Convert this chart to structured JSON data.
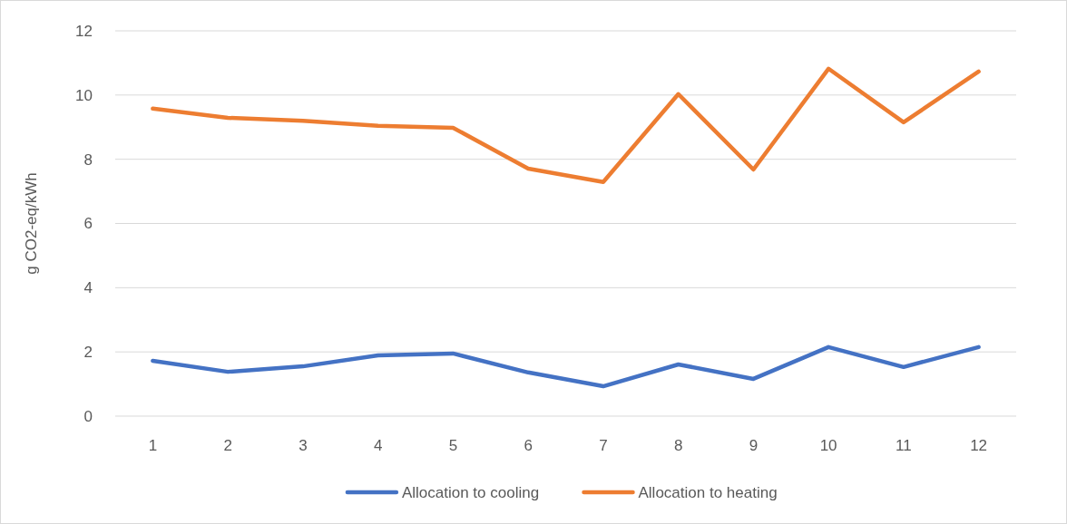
{
  "chart_data": {
    "type": "line",
    "ylabel": "g CO2-eq/kWh",
    "categories": [
      "1",
      "2",
      "3",
      "4",
      "5",
      "6",
      "7",
      "8",
      "9",
      "10",
      "11",
      "12"
    ],
    "series": [
      {
        "name": "Allocation to cooling",
        "color": "#4472c4",
        "values": [
          1.72,
          1.38,
          1.55,
          1.89,
          1.95,
          1.36,
          0.93,
          1.61,
          1.16,
          2.15,
          1.53,
          2.15
        ]
      },
      {
        "name": "Allocation to heating",
        "color": "#ed7d31",
        "values": [
          9.58,
          9.29,
          9.2,
          9.04,
          8.98,
          7.71,
          7.29,
          10.03,
          7.68,
          10.82,
          9.15,
          10.73
        ]
      }
    ],
    "ylim": [
      0,
      12
    ],
    "yticks": [
      0,
      2,
      4,
      6,
      8,
      10,
      12
    ],
    "grid": "y",
    "legend": "bottom",
    "marker": "none",
    "line_style": "solid"
  }
}
